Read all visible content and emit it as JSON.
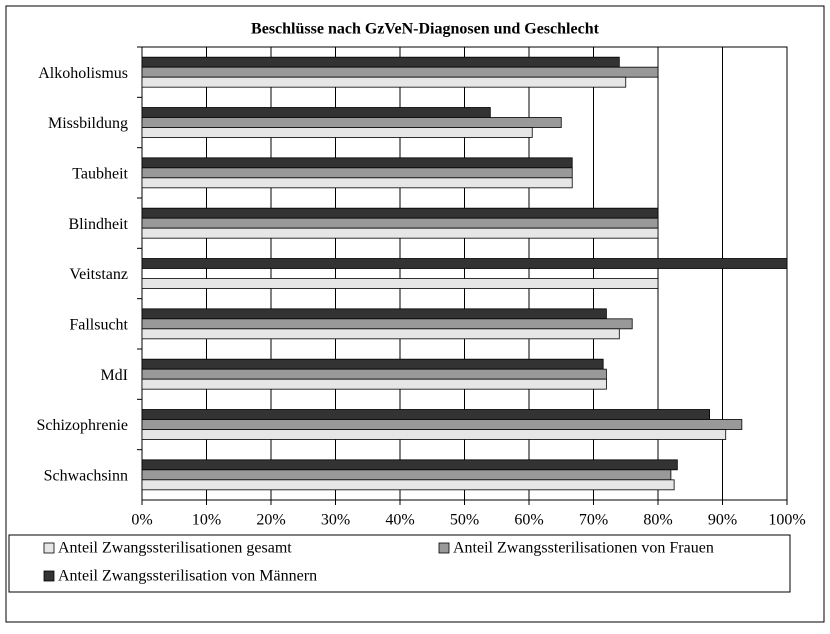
{
  "chart_data": {
    "type": "bar",
    "orientation": "horizontal",
    "title": "Beschlüsse nach GzVeN-Diagnosen und Geschlecht",
    "categories": [
      "Alkoholismus",
      "Missbildung",
      "Taubheit",
      "Blindheit",
      "Veitstanz",
      "Fallsucht",
      "MdI",
      "Schizophrenie",
      "Schwachsinn"
    ],
    "series": [
      {
        "name": "Anteil Zwangssterilisation von Männern",
        "color": "#333333",
        "values": [
          74,
          54,
          66.7,
          80,
          100,
          72,
          71.5,
          88,
          83
        ]
      },
      {
        "name": "Anteil Zwangssterilisationen von Frauen",
        "color": "#999999",
        "values": [
          80,
          65,
          66.7,
          80,
          0,
          76,
          72,
          93,
          82
        ]
      },
      {
        "name": "Anteil Zwangssterilisationen gesamt",
        "color": "#e6e6e6",
        "values": [
          75,
          60.5,
          66.7,
          80,
          80,
          74,
          72,
          90.5,
          82.5
        ]
      }
    ],
    "xlim": [
      0,
      100
    ],
    "xticks": [
      {
        "value": 0,
        "label": "0%"
      },
      {
        "value": 10,
        "label": "10%"
      },
      {
        "value": 20,
        "label": "20%"
      },
      {
        "value": 30,
        "label": "30%"
      },
      {
        "value": 40,
        "label": "40%"
      },
      {
        "value": 50,
        "label": "50%"
      },
      {
        "value": 60,
        "label": "60%"
      },
      {
        "value": 70,
        "label": "70%"
      },
      {
        "value": 80,
        "label": "80%"
      },
      {
        "value": 90,
        "label": "90%"
      },
      {
        "value": 100,
        "label": "100%"
      }
    ],
    "grid": true,
    "legend": "bottom"
  }
}
